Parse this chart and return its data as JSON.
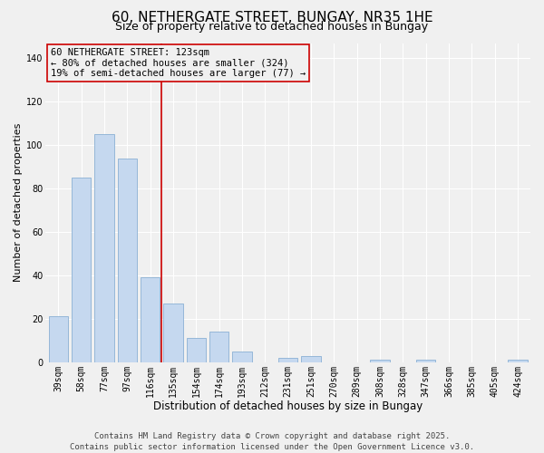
{
  "title": "60, NETHERGATE STREET, BUNGAY, NR35 1HE",
  "subtitle": "Size of property relative to detached houses in Bungay",
  "xlabel": "Distribution of detached houses by size in Bungay",
  "ylabel": "Number of detached properties",
  "bar_labels": [
    "39sqm",
    "58sqm",
    "77sqm",
    "97sqm",
    "116sqm",
    "135sqm",
    "154sqm",
    "174sqm",
    "193sqm",
    "212sqm",
    "231sqm",
    "251sqm",
    "270sqm",
    "289sqm",
    "308sqm",
    "328sqm",
    "347sqm",
    "366sqm",
    "385sqm",
    "405sqm",
    "424sqm"
  ],
  "bar_values": [
    21,
    85,
    105,
    94,
    39,
    27,
    11,
    14,
    5,
    0,
    2,
    3,
    0,
    0,
    1,
    0,
    1,
    0,
    0,
    0,
    1
  ],
  "bar_color": "#c5d8ef",
  "bar_edgecolor": "#8ab0d4",
  "vline_x": 4.5,
  "vline_color": "#cc0000",
  "annotation_title": "60 NETHERGATE STREET: 123sqm",
  "annotation_line1": "← 80% of detached houses are smaller (324)",
  "annotation_line2": "19% of semi-detached houses are larger (77) →",
  "ylim": [
    0,
    147
  ],
  "yticks": [
    0,
    20,
    40,
    60,
    80,
    100,
    120,
    140
  ],
  "background_color": "#f0f0f0",
  "grid_color": "#ffffff",
  "footer_line1": "Contains HM Land Registry data © Crown copyright and database right 2025.",
  "footer_line2": "Contains public sector information licensed under the Open Government Licence v3.0.",
  "title_fontsize": 11,
  "subtitle_fontsize": 9,
  "xlabel_fontsize": 8.5,
  "ylabel_fontsize": 8,
  "tick_fontsize": 7,
  "annotation_fontsize": 7.5,
  "footer_fontsize": 6.5
}
